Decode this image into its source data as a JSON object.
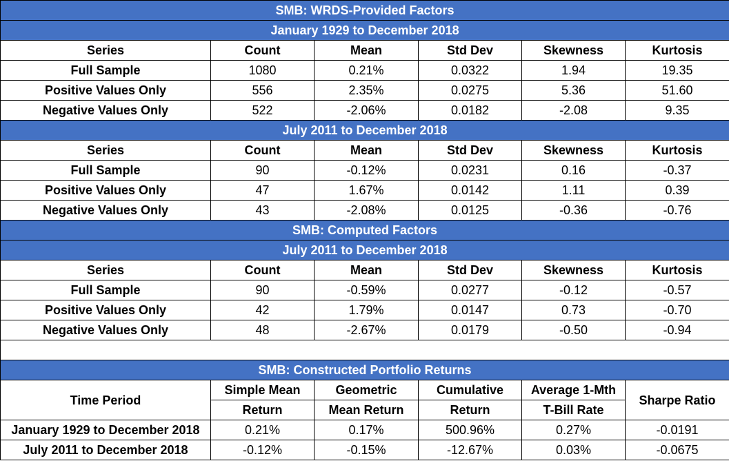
{
  "sections": {
    "wrds_title": "SMB: WRDS-Provided Factors",
    "computed_title": "SMB: Computed Factors",
    "constructed_title": "SMB: Constructed Portfolio Returns"
  },
  "periods": {
    "p1": "January 1929 to December 2018",
    "p2": "July 2011 to December 2018",
    "p3": "July 2011 to December 2018"
  },
  "headers": [
    "Series",
    "Count",
    "Mean",
    "Std Dev",
    "Skewness",
    "Kurtosis"
  ],
  "blocks": [
    {
      "rows": [
        [
          "Full Sample",
          "1080",
          "0.21%",
          "0.0322",
          "1.94",
          "19.35"
        ],
        [
          "Positive Values Only",
          "556",
          "2.35%",
          "0.0275",
          "5.36",
          "51.60"
        ],
        [
          "Negative Values Only",
          "522",
          "-2.06%",
          "0.0182",
          "-2.08",
          "9.35"
        ]
      ]
    },
    {
      "rows": [
        [
          "Full Sample",
          "90",
          "-0.12%",
          "0.0231",
          "0.16",
          "-0.37"
        ],
        [
          "Positive Values Only",
          "47",
          "1.67%",
          "0.0142",
          "1.11",
          "0.39"
        ],
        [
          "Negative Values Only",
          "43",
          "-2.08%",
          "0.0125",
          "-0.36",
          "-0.76"
        ]
      ]
    },
    {
      "rows": [
        [
          "Full Sample",
          "90",
          "-0.59%",
          "0.0277",
          "-0.12",
          "-0.57"
        ],
        [
          "Positive Values Only",
          "42",
          "1.79%",
          "0.0147",
          "0.73",
          "-0.70"
        ],
        [
          "Negative Values Only",
          "48",
          "-2.67%",
          "0.0179",
          "-0.50",
          "-0.94"
        ]
      ]
    }
  ],
  "portfolio": {
    "headers": {
      "time_period": "Time Period",
      "simple_mean_1": "Simple Mean",
      "simple_mean_2": "Return",
      "geo_mean_1": "Geometric",
      "geo_mean_2": "Mean Return",
      "cumulative_1": "Cumulative",
      "cumulative_2": "Return",
      "tbill_1": "Average 1-Mth",
      "tbill_2": "T-Bill Rate",
      "sharpe": "Sharpe Ratio"
    },
    "rows": [
      [
        "January 1929 to December 2018",
        "0.21%",
        "0.17%",
        "500.96%",
        "0.27%",
        "-0.0191"
      ],
      [
        "July 2011 to December 2018",
        "-0.12%",
        "-0.15%",
        "-12.67%",
        "0.03%",
        "-0.0675"
      ]
    ]
  },
  "colors": {
    "band_blue": "#4472C4",
    "band_text": "#FFFFFF"
  }
}
